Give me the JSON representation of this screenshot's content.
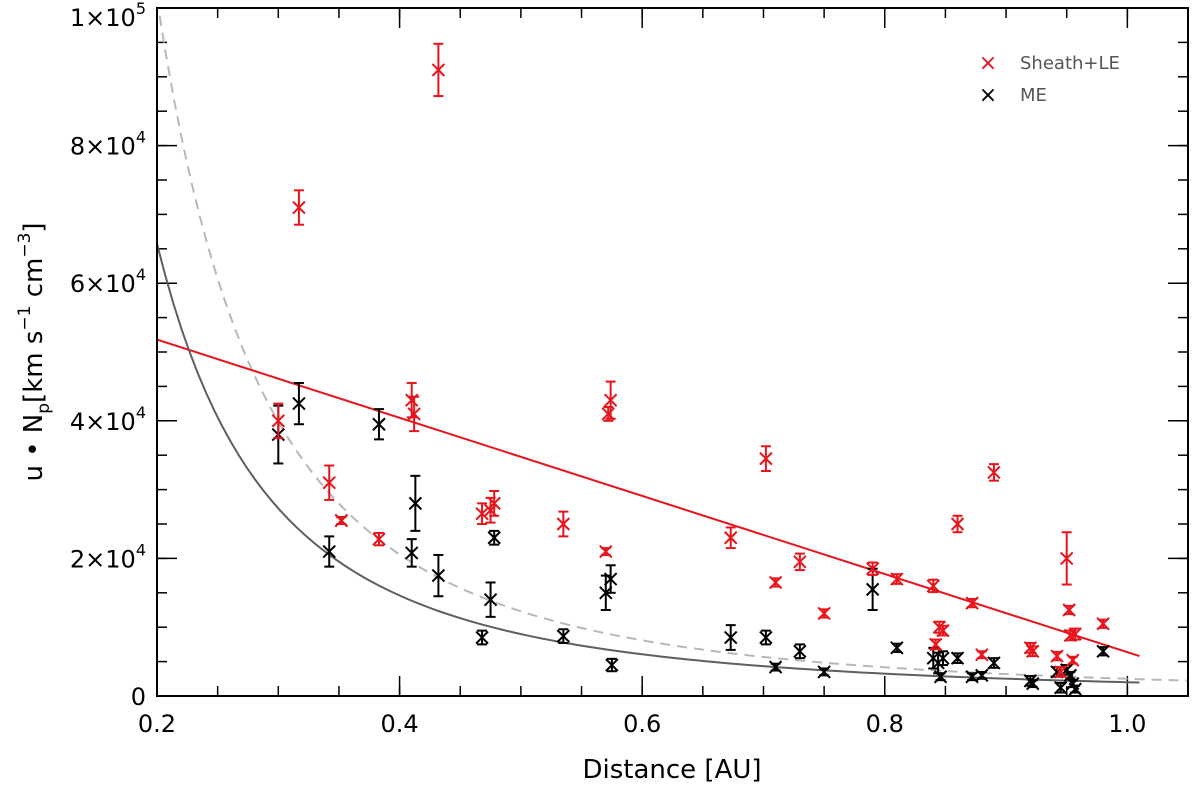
{
  "chart_data": {
    "type": "scatter",
    "xlabel": "Distance [AU]",
    "ylabel_parts": {
      "base": "u • N",
      "sub": "p",
      "units": "[km s",
      "exp1": "−1",
      "mid": " cm",
      "exp2": "−3",
      "end": "]"
    },
    "xlim": [
      0.2,
      1.05
    ],
    "ylim": [
      0,
      100000
    ],
    "x_ticks": [
      0.2,
      0.4,
      0.6,
      0.8,
      1.0
    ],
    "x_tick_labels": [
      "0.2",
      "0.4",
      "0.6",
      "0.8",
      "1.0"
    ],
    "x_minor_step": 0.05,
    "y_ticks": [
      0,
      20000,
      40000,
      60000,
      80000,
      100000
    ],
    "y_tick_labels": [
      {
        "mant": "0",
        "exp": ""
      },
      {
        "mant": "2×10",
        "exp": "4"
      },
      {
        "mant": "4×10",
        "exp": "4"
      },
      {
        "mant": "6×10",
        "exp": "4"
      },
      {
        "mant": "8×10",
        "exp": "4"
      },
      {
        "mant": "1×10",
        "exp": "5"
      }
    ],
    "y_minor_step": 5000,
    "series": [
      {
        "name": "Sheath+LE",
        "color": "#e8141c",
        "points": [
          [
            0.3,
            40000,
            2500
          ],
          [
            0.317,
            71000,
            2500
          ],
          [
            0.342,
            31000,
            2500
          ],
          [
            0.352,
            25500,
            500
          ],
          [
            0.383,
            22800,
            900
          ],
          [
            0.41,
            43000,
            2500
          ],
          [
            0.412,
            41000,
            2500
          ],
          [
            0.432,
            91000,
            3800
          ],
          [
            0.468,
            26500,
            1500
          ],
          [
            0.475,
            27000,
            1800
          ],
          [
            0.478,
            28000,
            1800
          ],
          [
            0.535,
            25000,
            1800
          ],
          [
            0.57,
            21000,
            500
          ],
          [
            0.572,
            41000,
            1000
          ],
          [
            0.574,
            43000,
            2700
          ],
          [
            0.673,
            23000,
            1500
          ],
          [
            0.702,
            34500,
            1800
          ],
          [
            0.71,
            16500,
            600
          ],
          [
            0.73,
            19500,
            1200
          ],
          [
            0.75,
            12000,
            600
          ],
          [
            0.79,
            18500,
            900
          ],
          [
            0.81,
            17000,
            700
          ],
          [
            0.84,
            16000,
            900
          ],
          [
            0.842,
            7500,
            700
          ],
          [
            0.845,
            10000,
            800
          ],
          [
            0.848,
            9500,
            700
          ],
          [
            0.86,
            25000,
            1200
          ],
          [
            0.872,
            13500,
            600
          ],
          [
            0.88,
            6000,
            500
          ],
          [
            0.89,
            32500,
            1200
          ],
          [
            0.92,
            7000,
            700
          ],
          [
            0.922,
            6500,
            700
          ],
          [
            0.942,
            5800,
            600
          ],
          [
            0.945,
            3500,
            700
          ],
          [
            0.95,
            20000,
            3800
          ],
          [
            0.952,
            12500,
            600
          ],
          [
            0.953,
            8800,
            700
          ],
          [
            0.955,
            5200,
            500
          ],
          [
            0.957,
            9000,
            800
          ],
          [
            0.98,
            10500,
            600
          ]
        ],
        "fit": {
          "type": "linear",
          "x_start": 0.2,
          "x_end": 1.01,
          "y_start": 51800,
          "y_end": 5800
        }
      },
      {
        "name": "ME",
        "color": "#000000",
        "points": [
          [
            0.3,
            38000,
            4200
          ],
          [
            0.317,
            42500,
            3000
          ],
          [
            0.342,
            21000,
            2200
          ],
          [
            0.352,
            25500,
            500
          ],
          [
            0.383,
            39500,
            2200
          ],
          [
            0.41,
            20800,
            2000
          ],
          [
            0.413,
            28000,
            4000
          ],
          [
            0.432,
            17500,
            3000
          ],
          [
            0.468,
            8500,
            1000
          ],
          [
            0.475,
            14000,
            2500
          ],
          [
            0.478,
            23000,
            1000
          ],
          [
            0.535,
            8700,
            1000
          ],
          [
            0.57,
            15000,
            2500
          ],
          [
            0.574,
            17000,
            2000
          ],
          [
            0.575,
            4500,
            900
          ],
          [
            0.673,
            8500,
            1800
          ],
          [
            0.702,
            8500,
            1000
          ],
          [
            0.71,
            4200,
            500
          ],
          [
            0.73,
            6500,
            1000
          ],
          [
            0.75,
            3500,
            500
          ],
          [
            0.79,
            15500,
            3000
          ],
          [
            0.81,
            7000,
            600
          ],
          [
            0.84,
            5500,
            1500
          ],
          [
            0.844,
            4800,
            1500
          ],
          [
            0.846,
            2800,
            500
          ],
          [
            0.848,
            5500,
            1000
          ],
          [
            0.86,
            5500,
            700
          ],
          [
            0.872,
            2800,
            500
          ],
          [
            0.88,
            3000,
            500
          ],
          [
            0.89,
            4800,
            700
          ],
          [
            0.92,
            2200,
            700
          ],
          [
            0.922,
            1800,
            500
          ],
          [
            0.942,
            3500,
            700
          ],
          [
            0.945,
            1200,
            700
          ],
          [
            0.95,
            3800,
            700
          ],
          [
            0.953,
            3000,
            500
          ],
          [
            0.955,
            1800,
            500
          ],
          [
            0.957,
            1000,
            500
          ],
          [
            0.98,
            6500,
            600
          ]
        ],
        "fit": {
          "type": "power",
          "coef": 2000,
          "exponent": -2.17,
          "x_start": 0.2,
          "x_end": 1.01
        }
      }
    ],
    "reference_curve": {
      "type": "power",
      "coef": 2500,
      "exponent": -2.3,
      "x_start": 0.2,
      "x_end": 1.05,
      "color": "#b8b8b8",
      "style": "dashed"
    },
    "legend": {
      "position": "top-right",
      "entries": [
        {
          "label": "Sheath+LE",
          "marker": "×",
          "color": "#e8141c"
        },
        {
          "label": "ME",
          "marker": "×",
          "color": "#000000"
        }
      ]
    }
  }
}
